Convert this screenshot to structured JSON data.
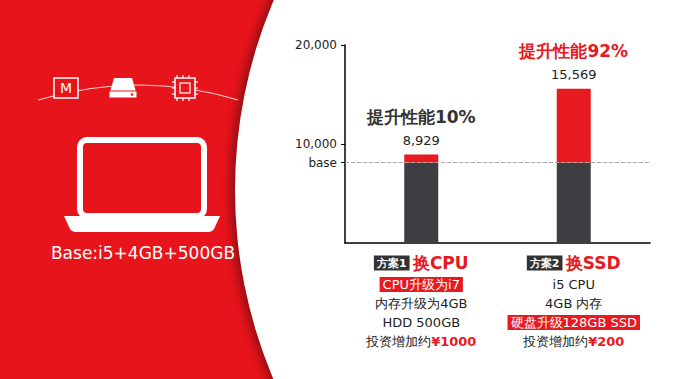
{
  "chart_data": {
    "type": "bar",
    "stacked": true,
    "grid": false,
    "categories": [
      "换CPU",
      "换SSD"
    ],
    "category_badges": [
      "方案1",
      "方案2"
    ],
    "details": [
      [
        {
          "text": "CPU升级为i7",
          "highlight": true
        },
        {
          "text": "内存升级为4GB"
        },
        {
          "text": "HDD 500GB"
        }
      ],
      [
        {
          "text": "i5 CPU"
        },
        {
          "text": "4GB 内存"
        },
        {
          "text": "硬盘升级128GB SSD",
          "highlight": true
        }
      ]
    ],
    "cost_prefix": "投资增加约",
    "costs": [
      "¥1000",
      "¥200"
    ],
    "series": [
      {
        "color": "#3d3d42",
        "values": [
          8110,
          8110
        ]
      },
      {
        "color": "#e8191f",
        "values": [
          819,
          7459
        ]
      }
    ],
    "totals": [
      8929,
      15569
    ],
    "total_labels": [
      "8,929",
      "15,569"
    ],
    "annotations": [
      "提升性能10%",
      "提升性能92%"
    ],
    "annotation_colors": [
      "#333333",
      "#e8191f"
    ],
    "ylim": [
      0,
      20000
    ],
    "yticks": [
      {
        "value": 8110,
        "label": "base"
      },
      {
        "value": 10000,
        "label": "10,000"
      },
      {
        "value": 20000,
        "label": "20,000"
      }
    ]
  },
  "panel": {
    "label": "Base:i5+4GB+500GB",
    "icon_letter": "M"
  }
}
